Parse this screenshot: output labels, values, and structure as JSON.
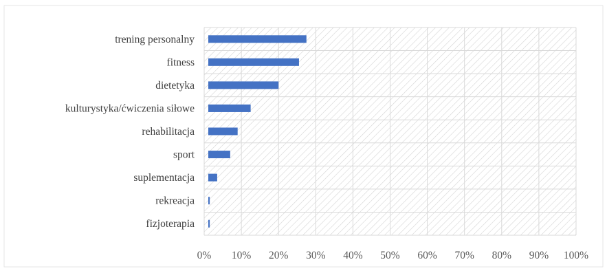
{
  "chart_data": {
    "type": "bar",
    "orientation": "horizontal",
    "categories": [
      "trening personalny",
      "fitness",
      "dietetyka",
      "kulturystyka/ćwiczenia siłowe",
      "rehabilitacja",
      "sport",
      "suplementacja",
      "rekreacja",
      "fizjoterapia"
    ],
    "values": [
      27.5,
      25.5,
      20,
      12.5,
      9,
      7,
      3.5,
      1.5,
      1.5
    ],
    "xlim": [
      0,
      100
    ],
    "x_ticks": [
      "0%",
      "10%",
      "20%",
      "30%",
      "40%",
      "50%",
      "60%",
      "70%",
      "80%",
      "90%",
      "100%"
    ],
    "grid": true,
    "plot_background": "hatched",
    "title": "",
    "xlabel": "",
    "ylabel": "",
    "colors": {
      "bar": "#4472c4",
      "grid": "#d9d9d9",
      "hatch": "#d4d4d4",
      "text": "#404040"
    }
  }
}
